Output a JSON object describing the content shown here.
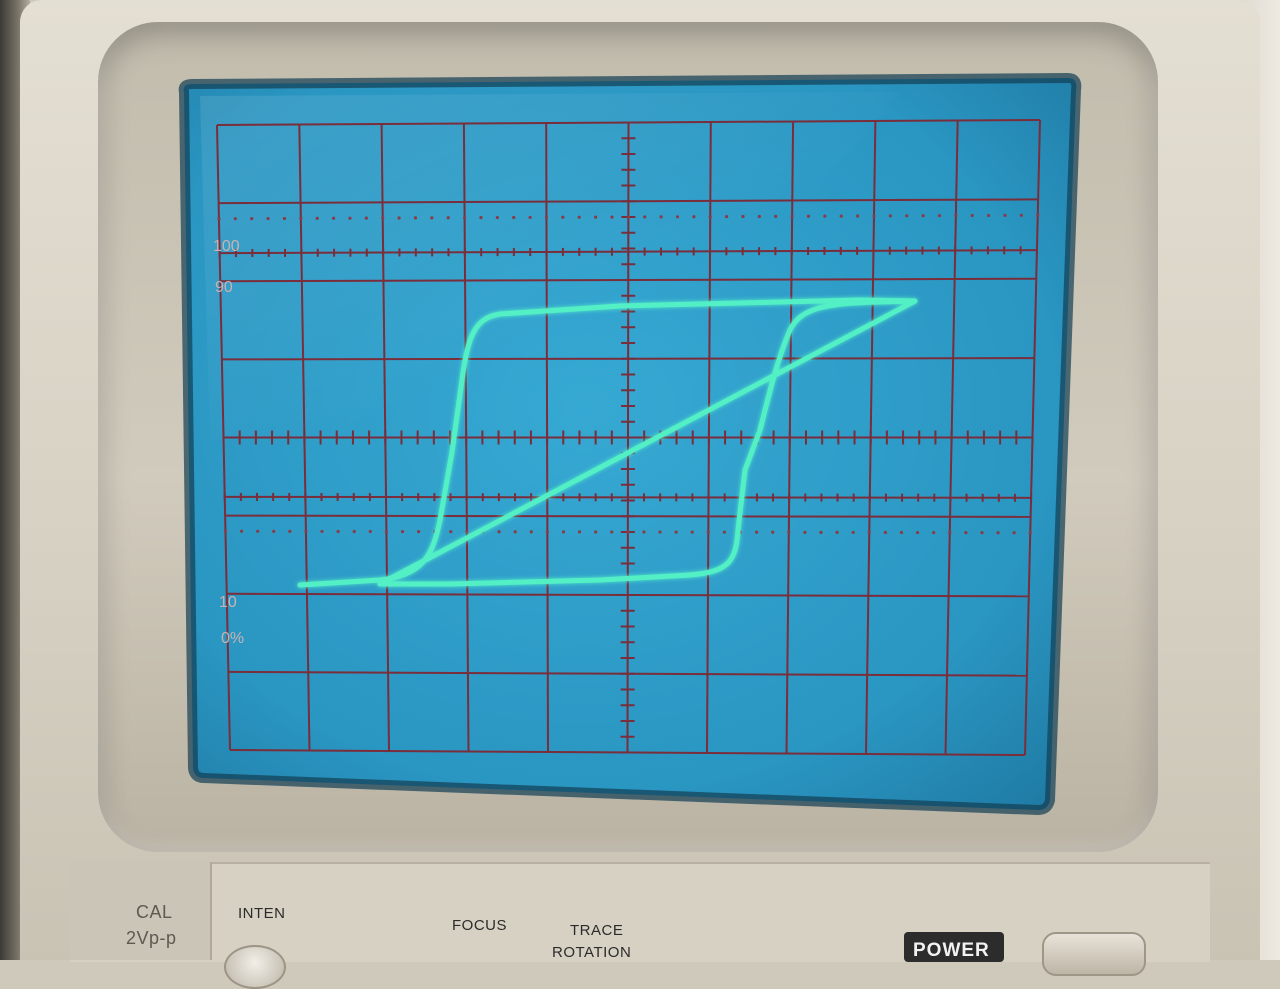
{
  "device": {
    "cal": {
      "label": "CAL",
      "sub": "2Vp-p"
    },
    "controls": {
      "inten": "INTEN",
      "focus": "FOCUS",
      "trace_rotation_line1": "TRACE",
      "trace_rotation_line2": "ROTATION",
      "power": "POWER"
    }
  },
  "graticule": {
    "levels": {
      "l100": "100",
      "l90": "90",
      "l10": "10",
      "l0": "0%"
    }
  },
  "colors": {
    "trace": "#53f0c6",
    "screen": "#2c9cc8",
    "grid": "#7a2d3a"
  }
}
